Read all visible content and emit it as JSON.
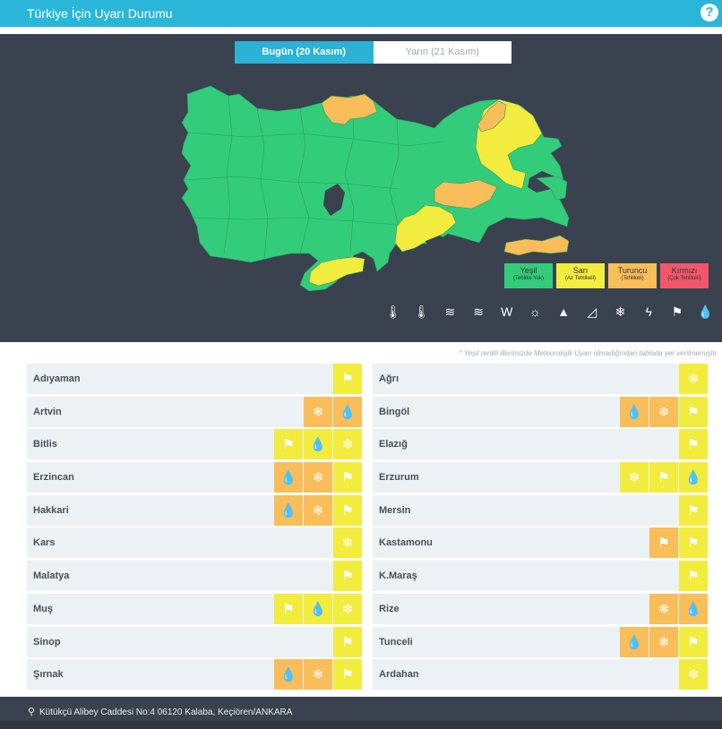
{
  "header": {
    "title": "Türkiye İçin Uyarı Durumu",
    "help": "?"
  },
  "tabs": [
    {
      "label": "Bugün (20 Kasım)",
      "active": true
    },
    {
      "label": "Yarın (21 Kasım)",
      "active": false
    }
  ],
  "legend": [
    {
      "name": "Yeşil",
      "desc": "(Tehlike Yok)",
      "color": "#33cc7a"
    },
    {
      "name": "Sarı",
      "desc": "(Az Tehlikeli)",
      "color": "#f2ec3e"
    },
    {
      "name": "Turuncu",
      "desc": "(Tehlikeli)",
      "color": "#f9bd59"
    },
    {
      "name": "Kırmızı",
      "desc": "(Çok Tehlikeli)",
      "color": "#f2566c"
    }
  ],
  "hazard_icons": [
    {
      "name": "cold-thermometer-icon",
      "glyph": "🌡"
    },
    {
      "name": "hot-thermometer-icon",
      "glyph": "🌡"
    },
    {
      "name": "fog-icon",
      "glyph": "≋"
    },
    {
      "name": "dust-icon",
      "glyph": "≋"
    },
    {
      "name": "avalanche-icon",
      "glyph": "W"
    },
    {
      "name": "snow-melt-icon",
      "glyph": "☼"
    },
    {
      "name": "ice-icon",
      "glyph": "▲"
    },
    {
      "name": "landslide-icon",
      "glyph": "◿"
    },
    {
      "name": "snow-icon",
      "glyph": "❄"
    },
    {
      "name": "thunder-icon",
      "glyph": "ϟ"
    },
    {
      "name": "wind-icon",
      "glyph": "⚑"
    },
    {
      "name": "rain-icon",
      "glyph": "💧"
    }
  ],
  "note": "* Yeşil renkli illerimizde Meteorolojik Uyarı olmadığından tabloda yer verilmemiştir.",
  "provinces_left": [
    {
      "name": "Adıyaman",
      "alerts": [
        {
          "type": "wind",
          "level": "sari"
        }
      ]
    },
    {
      "name": "Artvin",
      "alerts": [
        {
          "type": "snow",
          "level": "turuncu"
        },
        {
          "type": "rain",
          "level": "turuncu"
        }
      ]
    },
    {
      "name": "Bitlis",
      "alerts": [
        {
          "type": "wind",
          "level": "sari"
        },
        {
          "type": "rain",
          "level": "sari"
        },
        {
          "type": "snow",
          "level": "sari"
        }
      ]
    },
    {
      "name": "Erzincan",
      "alerts": [
        {
          "type": "rain",
          "level": "turuncu"
        },
        {
          "type": "snow",
          "level": "turuncu"
        },
        {
          "type": "wind",
          "level": "sari"
        }
      ]
    },
    {
      "name": "Hakkari",
      "alerts": [
        {
          "type": "rain",
          "level": "turuncu"
        },
        {
          "type": "snow",
          "level": "turuncu"
        },
        {
          "type": "wind",
          "level": "sari"
        }
      ]
    },
    {
      "name": "Kars",
      "alerts": [
        {
          "type": "snow",
          "level": "sari"
        }
      ]
    },
    {
      "name": "Malatya",
      "alerts": [
        {
          "type": "wind",
          "level": "sari"
        }
      ]
    },
    {
      "name": "Muş",
      "alerts": [
        {
          "type": "wind",
          "level": "sari"
        },
        {
          "type": "rain",
          "level": "sari"
        },
        {
          "type": "snow",
          "level": "sari"
        }
      ]
    },
    {
      "name": "Sinop",
      "alerts": [
        {
          "type": "wind",
          "level": "sari"
        }
      ]
    },
    {
      "name": "Şırnak",
      "alerts": [
        {
          "type": "rain",
          "level": "turuncu"
        },
        {
          "type": "snow",
          "level": "turuncu"
        },
        {
          "type": "wind",
          "level": "sari"
        }
      ]
    }
  ],
  "provinces_right": [
    {
      "name": "Ağrı",
      "alerts": [
        {
          "type": "snow",
          "level": "sari"
        }
      ]
    },
    {
      "name": "Bingöl",
      "alerts": [
        {
          "type": "rain",
          "level": "turuncu"
        },
        {
          "type": "snow",
          "level": "turuncu"
        },
        {
          "type": "wind",
          "level": "sari"
        }
      ]
    },
    {
      "name": "Elazığ",
      "alerts": [
        {
          "type": "wind",
          "level": "sari"
        }
      ]
    },
    {
      "name": "Erzurum",
      "alerts": [
        {
          "type": "snow",
          "level": "sari"
        },
        {
          "type": "wind",
          "level": "sari"
        },
        {
          "type": "rain",
          "level": "sari"
        }
      ]
    },
    {
      "name": "Mersin",
      "alerts": [
        {
          "type": "wind",
          "level": "sari"
        }
      ]
    },
    {
      "name": "Kastamonu",
      "alerts": [
        {
          "type": "wind",
          "level": "turuncu"
        },
        {
          "type": "wind",
          "level": "sari"
        }
      ]
    },
    {
      "name": "K.Maraş",
      "alerts": [
        {
          "type": "wind",
          "level": "sari"
        }
      ]
    },
    {
      "name": "Rize",
      "alerts": [
        {
          "type": "snow",
          "level": "turuncu"
        },
        {
          "type": "rain",
          "level": "turuncu"
        }
      ]
    },
    {
      "name": "Tunceli",
      "alerts": [
        {
          "type": "rain",
          "level": "turuncu"
        },
        {
          "type": "snow",
          "level": "turuncu"
        },
        {
          "type": "wind",
          "level": "sari"
        }
      ]
    },
    {
      "name": "Ardahan",
      "alerts": [
        {
          "type": "snow",
          "level": "sari"
        }
      ]
    }
  ],
  "footer": {
    "address": "Kütükçü Alibey Caddesi No:4 06120 Kalaba, Keçiören/ANKARA"
  }
}
